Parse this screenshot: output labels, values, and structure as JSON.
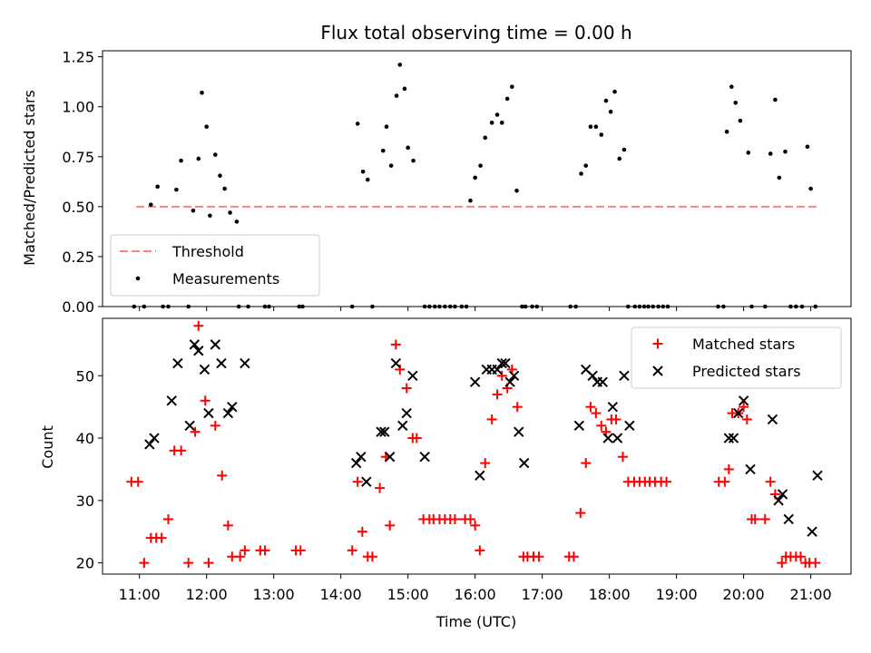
{
  "chart_data": [
    {
      "type": "scatter",
      "title": "Flux total observing time = 0.00 h",
      "xlabel": "",
      "ylabel": "Matched/Predicted stars",
      "xlim": [
        10.45,
        21.6
      ],
      "ylim": [
        0,
        1.28
      ],
      "yticks": [
        0.0,
        0.25,
        0.5,
        0.75,
        1.0,
        1.25
      ],
      "ytick_labels": [
        "0.00",
        "0.25",
        "0.50",
        "0.75",
        "1.00",
        "1.25"
      ],
      "legend_position": "lower-left",
      "threshold": {
        "name": "Threshold",
        "y": 0.5,
        "x_range": [
          10.95,
          21.1
        ],
        "color": "#ff8080"
      },
      "measurements": {
        "name": "Measurements",
        "color": "#000000",
        "x": [
          10.92,
          11.07,
          11.17,
          11.27,
          11.35,
          11.43,
          11.55,
          11.62,
          11.73,
          11.8,
          11.88,
          11.93,
          12.0,
          12.05,
          12.13,
          12.2,
          12.27,
          12.35,
          12.45,
          12.48,
          12.62,
          12.87,
          12.93,
          13.38,
          13.43,
          14.17,
          14.25,
          14.33,
          14.4,
          14.47,
          14.63,
          14.68,
          14.75,
          14.83,
          14.88,
          14.95,
          15.0,
          15.08,
          15.25,
          15.32,
          15.4,
          15.47,
          15.55,
          15.63,
          15.7,
          15.8,
          15.87,
          15.93,
          16.0,
          16.08,
          16.15,
          16.25,
          16.33,
          16.4,
          16.48,
          16.55,
          16.62,
          16.7,
          16.75,
          16.85,
          16.92,
          17.42,
          17.5,
          17.58,
          17.65,
          17.72,
          17.8,
          17.88,
          17.95,
          18.02,
          18.08,
          18.15,
          18.22,
          18.28,
          18.38,
          18.45,
          18.52,
          18.58,
          18.65,
          18.73,
          18.8,
          18.87,
          19.62,
          19.7,
          19.75,
          19.82,
          19.88,
          19.95,
          20.07,
          20.12,
          20.32,
          20.4,
          20.47,
          20.53,
          20.62,
          20.7,
          20.78,
          20.87,
          20.95,
          21.0,
          21.07
        ],
        "y": [
          0.0,
          0.0,
          0.51,
          0.6,
          0.0,
          0.0,
          0.585,
          0.73,
          0.0,
          0.48,
          0.74,
          1.07,
          0.9,
          0.455,
          0.76,
          0.655,
          0.59,
          0.47,
          0.425,
          0.0,
          0.0,
          0.0,
          0.0,
          0.0,
          0.0,
          0.0,
          0.915,
          0.675,
          0.635,
          0.0,
          0.78,
          0.9,
          0.705,
          1.055,
          1.21,
          1.09,
          0.795,
          0.73,
          0.0,
          0.0,
          0.0,
          0.0,
          0.0,
          0.0,
          0.0,
          0.0,
          0.0,
          0.53,
          0.645,
          0.705,
          0.845,
          0.92,
          0.96,
          0.92,
          1.04,
          1.1,
          0.58,
          0.0,
          0.0,
          0.0,
          0.0,
          0.0,
          0.0,
          0.665,
          0.705,
          0.9,
          0.9,
          0.86,
          1.03,
          0.975,
          1.075,
          0.74,
          0.785,
          0.0,
          0.0,
          0.0,
          0.0,
          0.0,
          0.0,
          0.0,
          0.0,
          0.0,
          0.0,
          0.0,
          0.875,
          1.1,
          1.02,
          0.93,
          0.77,
          0.0,
          0.0,
          0.765,
          1.035,
          0.645,
          0.775,
          0.0,
          0.0,
          0.0,
          0.8,
          0.59,
          0.0
        ]
      }
    },
    {
      "type": "scatter",
      "title": "",
      "xlabel": "Time (UTC)",
      "ylabel": "Count",
      "xlim": [
        10.45,
        21.6
      ],
      "ylim": [
        18.2,
        59.2
      ],
      "yticks": [
        20,
        30,
        40,
        50
      ],
      "xticks": [
        11,
        12,
        13,
        14,
        15,
        16,
        17,
        18,
        19,
        20,
        21
      ],
      "xtick_labels": [
        "11:00",
        "12:00",
        "13:00",
        "14:00",
        "15:00",
        "16:00",
        "17:00",
        "18:00",
        "19:00",
        "20:00",
        "21:00"
      ],
      "legend_position": "upper-right",
      "series": [
        {
          "name": "Matched stars",
          "marker": "+",
          "color": "#ff0000",
          "x": [
            10.88,
            10.98,
            11.07,
            11.17,
            11.25,
            11.33,
            11.43,
            11.52,
            11.62,
            11.73,
            11.83,
            11.88,
            11.98,
            12.03,
            12.13,
            12.23,
            12.32,
            12.38,
            12.5,
            12.57,
            12.8,
            12.87,
            13.33,
            13.4,
            14.17,
            14.25,
            14.32,
            14.4,
            14.47,
            14.58,
            14.67,
            14.73,
            14.82,
            14.88,
            14.98,
            15.07,
            15.13,
            15.23,
            15.32,
            15.38,
            15.47,
            15.55,
            15.63,
            15.7,
            15.85,
            15.93,
            16.0,
            16.07,
            16.15,
            16.25,
            16.33,
            16.4,
            16.48,
            16.55,
            16.63,
            16.72,
            16.78,
            16.87,
            16.95,
            17.4,
            17.47,
            17.57,
            17.65,
            17.72,
            17.8,
            17.88,
            17.95,
            18.03,
            18.1,
            18.2,
            18.28,
            18.37,
            18.45,
            18.53,
            18.6,
            18.68,
            18.77,
            18.85,
            19.63,
            19.72,
            19.78,
            19.83,
            19.92,
            20.0,
            20.05,
            20.12,
            20.17,
            20.32,
            20.4,
            20.47,
            20.57,
            20.63,
            20.7,
            20.78,
            20.85,
            20.92,
            20.98,
            21.07
          ],
          "y": [
            33,
            33,
            20,
            24,
            24,
            24,
            27,
            38,
            38,
            20,
            41,
            58,
            46,
            20,
            42,
            34,
            26,
            21,
            21,
            22,
            22,
            22,
            22,
            22,
            22,
            33,
            25,
            21,
            21,
            32,
            37,
            26,
            55,
            51,
            48,
            40,
            40,
            27,
            27,
            27,
            27,
            27,
            27,
            27,
            27,
            27,
            26,
            22,
            36,
            43,
            47,
            50,
            48,
            51,
            45,
            21,
            21,
            21,
            21,
            21,
            21,
            28,
            36,
            45,
            44,
            42,
            41,
            43,
            43,
            37,
            33,
            33,
            33,
            33,
            33,
            33,
            33,
            33,
            33,
            33,
            35,
            44,
            44,
            45,
            43,
            27,
            27,
            27,
            33,
            31,
            20,
            21,
            21,
            21,
            21,
            20,
            20,
            20
          ]
        },
        {
          "name": "Predicted stars",
          "marker": "x",
          "color": "#000000",
          "x": [
            11.15,
            11.22,
            11.48,
            11.57,
            11.75,
            11.82,
            11.88,
            11.97,
            12.03,
            12.13,
            12.22,
            12.32,
            12.38,
            12.57,
            14.23,
            14.3,
            14.38,
            14.6,
            14.65,
            14.73,
            14.82,
            14.92,
            14.98,
            15.07,
            15.25,
            16.0,
            16.07,
            16.17,
            16.25,
            16.33,
            16.4,
            16.45,
            16.52,
            16.58,
            16.65,
            16.73,
            17.55,
            17.65,
            17.75,
            17.82,
            17.9,
            17.98,
            18.05,
            18.12,
            18.22,
            18.3,
            19.78,
            19.85,
            19.92,
            20.0,
            20.1,
            20.43,
            20.52,
            20.58,
            20.67,
            21.02,
            21.1
          ],
          "y": [
            39,
            40,
            46,
            52,
            42,
            55,
            54,
            51,
            44,
            55,
            52,
            44,
            45,
            52,
            36,
            37,
            33,
            41,
            41,
            37,
            52,
            42,
            44,
            50,
            37,
            49,
            34,
            51,
            51,
            51,
            52,
            52,
            49,
            50,
            41,
            36,
            42,
            51,
            50,
            49,
            49,
            40,
            45,
            40,
            50,
            42,
            40,
            40,
            44,
            46,
            35,
            43,
            30,
            31,
            27,
            25,
            34
          ]
        }
      ]
    }
  ]
}
